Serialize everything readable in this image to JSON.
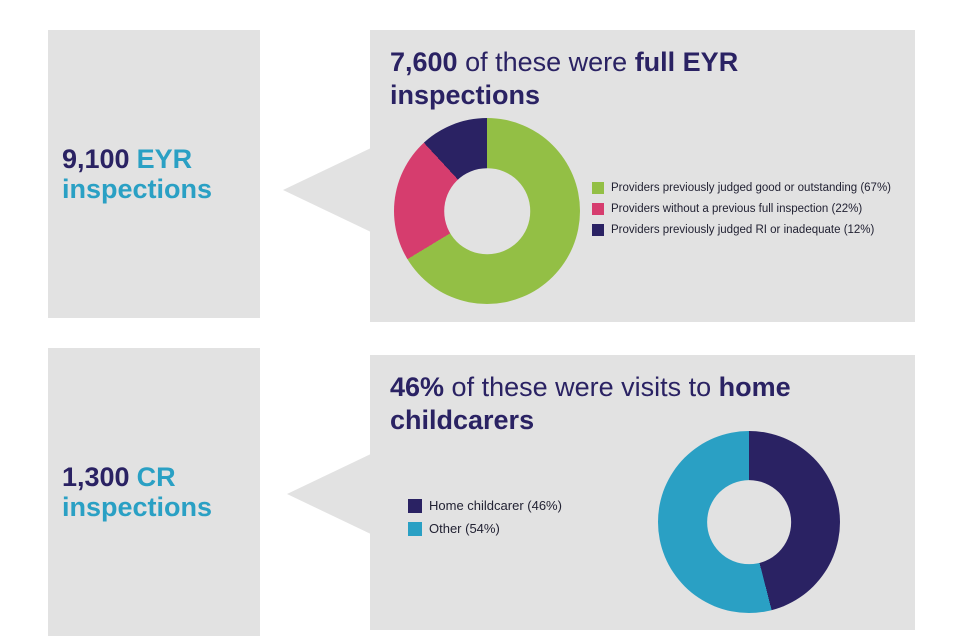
{
  "sections": [
    {
      "side_label": {
        "value": "9,100",
        "kind": "EYR",
        "rest": "inspections"
      },
      "headline": {
        "lead": "7,600",
        "middle": " of these were ",
        "tail": "full EYR inspections"
      }
    },
    {
      "side_label": {
        "value": "1,300",
        "kind": "CR",
        "rest": "inspections"
      },
      "headline": {
        "lead": "46%",
        "middle": " of these were visits to ",
        "tail": "home childcarers"
      }
    }
  ],
  "chart_data": [
    {
      "type": "pie",
      "subtype": "donut",
      "title": "7,600 of these were full EYR inspections",
      "labels": [
        "Providers previously judged good or outstanding (67%)",
        "Providers without a previous full inspection (22%)",
        "Providers previously judged RI or inadequate (12%)"
      ],
      "values": [
        67,
        22,
        12
      ],
      "colors": [
        "#93bf45",
        "#d63d6e",
        "#2a2263"
      ],
      "legend_position": "right",
      "start_angle_deg": 0,
      "direction": "clockwise"
    },
    {
      "type": "pie",
      "subtype": "donut",
      "title": "46% of these were visits to home childcarers",
      "labels": [
        "Home childcarer (46%)",
        "Other (54%)"
      ],
      "values": [
        46,
        54
      ],
      "colors": [
        "#2a2263",
        "#2aa0c4"
      ],
      "legend_position": "left",
      "start_angle_deg": 0,
      "direction": "clockwise"
    }
  ],
  "palette": {
    "navy": "#2a2263",
    "teal": "#2aa0c4",
    "green": "#93bf45",
    "pink": "#d63d6e",
    "box_background": "#e2e2e2"
  }
}
